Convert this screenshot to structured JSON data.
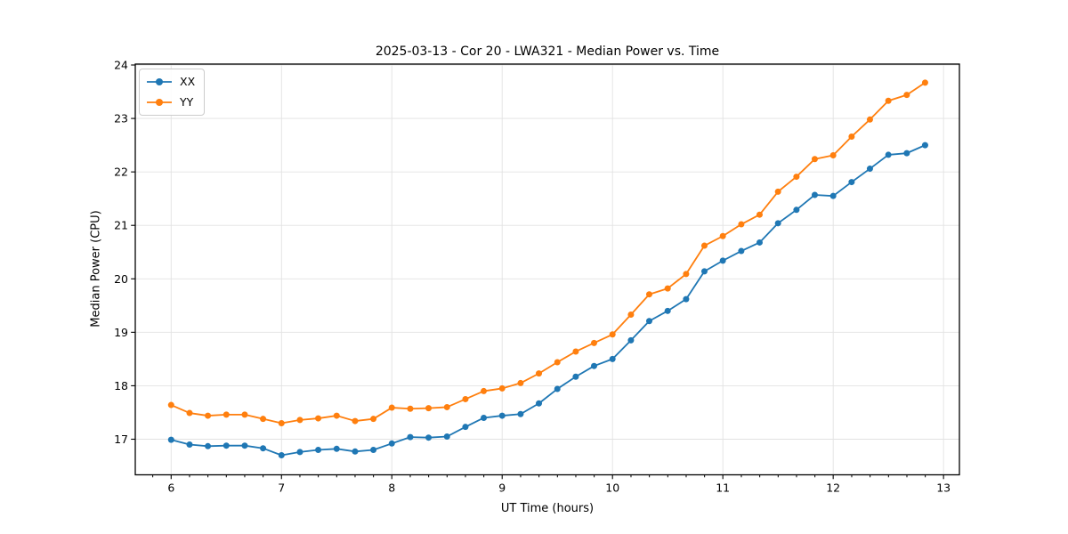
{
  "chart_data": {
    "type": "line",
    "title": "2025-03-13 - Cor 20 - LWA321 - Median Power vs. Time",
    "xlabel": "UT Time (hours)",
    "ylabel": "Median Power (CPU)",
    "xlim": [
      5.675,
      13.144
    ],
    "ylim": [
      16.334,
      24.017
    ],
    "xticks": [
      6,
      7,
      8,
      9,
      10,
      11,
      12,
      13
    ],
    "yticks": [
      17,
      18,
      19,
      20,
      21,
      22,
      23,
      24
    ],
    "minor_xtick_step": 0.1667,
    "grid": true,
    "grid_color": "#e2e2e2",
    "legend_position": "upper left",
    "marker": "circle",
    "x": [
      6.0,
      6.167,
      6.333,
      6.5,
      6.667,
      6.833,
      7.0,
      7.167,
      7.333,
      7.5,
      7.667,
      7.833,
      8.0,
      8.167,
      8.333,
      8.5,
      8.667,
      8.833,
      9.0,
      9.167,
      9.333,
      9.5,
      9.667,
      9.833,
      10.0,
      10.167,
      10.333,
      10.5,
      10.667,
      10.833,
      11.0,
      11.167,
      11.333,
      11.5,
      11.667,
      11.833,
      12.0,
      12.167,
      12.333,
      12.5,
      12.667,
      12.833
    ],
    "series": [
      {
        "name": "XX",
        "color": "#1f77b4",
        "values": [
          16.99,
          16.9,
          16.87,
          16.88,
          16.88,
          16.83,
          16.7,
          16.76,
          16.8,
          16.82,
          16.77,
          16.8,
          16.92,
          17.04,
          17.03,
          17.05,
          17.23,
          17.4,
          17.44,
          17.47,
          17.67,
          17.94,
          18.17,
          18.37,
          18.5,
          18.85,
          19.21,
          19.4,
          19.62,
          20.14,
          20.34,
          20.52,
          20.68,
          21.04,
          21.29,
          21.57,
          21.55,
          21.81,
          22.06,
          22.32,
          22.35,
          22.5
        ]
      },
      {
        "name": "YY",
        "color": "#ff7f0e",
        "values": [
          17.64,
          17.49,
          17.44,
          17.46,
          17.46,
          17.38,
          17.3,
          17.36,
          17.39,
          17.44,
          17.34,
          17.38,
          17.59,
          17.57,
          17.58,
          17.6,
          17.75,
          17.9,
          17.95,
          18.05,
          18.23,
          18.44,
          18.64,
          18.8,
          18.96,
          19.33,
          19.71,
          19.82,
          20.09,
          20.62,
          20.8,
          21.02,
          21.2,
          21.63,
          21.91,
          22.24,
          22.31,
          22.66,
          22.98,
          23.33,
          23.44,
          23.67
        ]
      }
    ]
  },
  "colors": {
    "background": "#ffffff",
    "axes": "#000000",
    "grid": "#e2e2e2",
    "series_xx": "#1f77b4",
    "series_yy": "#ff7f0e",
    "legend_border": "#cccccc"
  }
}
